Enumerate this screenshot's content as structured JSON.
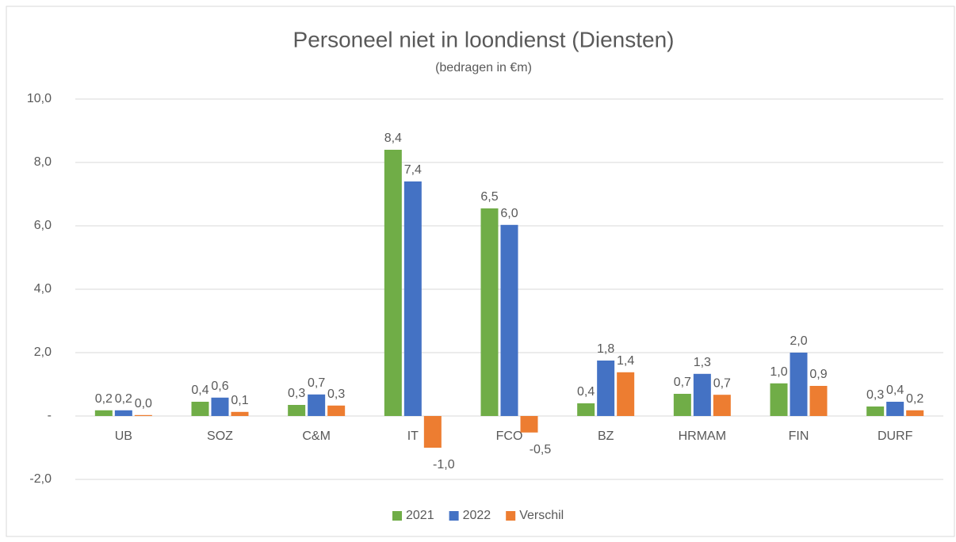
{
  "chart_data": {
    "type": "bar",
    "title": "Personeel niet in loondienst (Diensten)",
    "subtitle": "(bedragen in €m)",
    "categories": [
      "UB",
      "SOZ",
      "C&M",
      "IT",
      "FCO",
      "BZ",
      "HRMAM",
      "FIN",
      "DURF"
    ],
    "series": [
      {
        "name": "2021",
        "color": "#70ad47",
        "values": [
          0.18,
          0.45,
          0.35,
          8.4,
          6.55,
          0.4,
          0.7,
          1.03,
          0.3
        ],
        "value_labels": [
          "0,2",
          "0,4",
          "0,3",
          "8,4",
          "6,5",
          "0,4",
          "0,7",
          "1,0",
          "0,3"
        ]
      },
      {
        "name": "2022",
        "color": "#4472c4",
        "values": [
          0.18,
          0.58,
          0.68,
          7.4,
          6.03,
          1.75,
          1.33,
          2.0,
          0.45
        ],
        "value_labels": [
          "0,2",
          "0,6",
          "0,7",
          "7,4",
          "6,0",
          "1,8",
          "1,3",
          "2,0",
          "0,4"
        ]
      },
      {
        "name": "Verschil",
        "color": "#ed7d31",
        "values": [
          0.03,
          0.13,
          0.33,
          -1.0,
          -0.52,
          1.38,
          0.67,
          0.95,
          0.18
        ],
        "value_labels": [
          "0,0",
          "0,1",
          "0,3",
          "-1,0",
          "-0,5",
          "1,4",
          "0,7",
          "0,9",
          "0,2"
        ]
      }
    ],
    "ylim": [
      -2,
      10
    ],
    "yticks": [
      {
        "value": -2,
        "label": "-2,0"
      },
      {
        "value": 0,
        "label": "-"
      },
      {
        "value": 2,
        "label": "2,0"
      },
      {
        "value": 4,
        "label": "4,0"
      },
      {
        "value": 6,
        "label": "6,0"
      },
      {
        "value": 8,
        "label": "8,0"
      },
      {
        "value": 10,
        "label": "10,0"
      }
    ],
    "grid": true,
    "legend": "bottom"
  }
}
